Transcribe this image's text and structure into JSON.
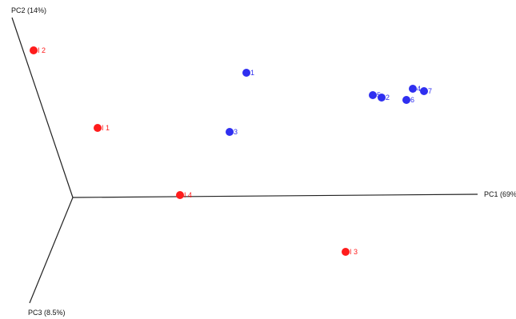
{
  "chart_data": {
    "type": "scatter",
    "projection": "3d-pca-biplot",
    "axes": {
      "pc1": "PC1 (69%",
      "pc2": "PC2 (14%)",
      "pc3": "PC3 (8.5%)"
    },
    "series": [
      {
        "color": "#ff1c1c",
        "points": [
          {
            "label": "I 2"
          },
          {
            "label": "I 1"
          },
          {
            "label": "I 4"
          },
          {
            "label": "I 3"
          }
        ]
      },
      {
        "color": "#2f2ff0",
        "points": [
          {
            "label": "1"
          },
          {
            "label": "3"
          },
          {
            "label": "5"
          },
          {
            "label": "2"
          },
          {
            "label": "4"
          },
          {
            "label": "7"
          },
          {
            "label": "6"
          }
        ]
      }
    ],
    "grid": false
  }
}
